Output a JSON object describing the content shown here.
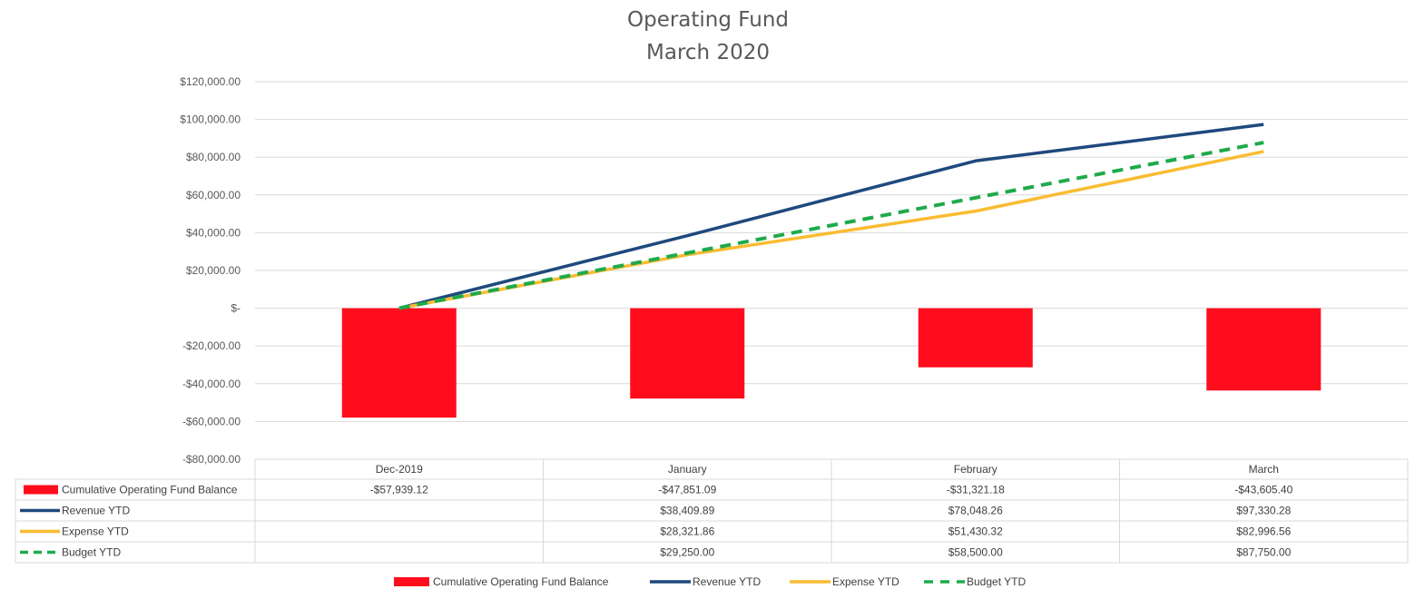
{
  "chart_data": {
    "type": "bar",
    "title": "Operating Fund",
    "subtitle": "March 2020",
    "categories": [
      "Dec-2019",
      "January",
      "February",
      "March"
    ],
    "ylim": [
      -80000,
      120000
    ],
    "ytick_values": [
      120000,
      100000,
      80000,
      60000,
      40000,
      20000,
      0,
      -20000,
      -40000,
      -60000,
      -80000
    ],
    "ytick_labels": [
      "$120,000.00",
      "$100,000.00",
      "$80,000.00",
      "$60,000.00",
      "$40,000.00",
      "$20,000.00",
      "$-",
      "-$20,000.00",
      "-$40,000.00",
      "-$60,000.00",
      "-$80,000.00"
    ],
    "grid": true,
    "legend_position": "bottom",
    "series": [
      {
        "name": "Cumulative Operating Fund Balance",
        "kind": "bar",
        "color": "#ff0d1d",
        "values": [
          -57939.12,
          -47851.09,
          -31321.18,
          -43605.4
        ],
        "labels": [
          "-$57,939.12",
          "-$47,851.09",
          "-$31,321.18",
          "-$43,605.40"
        ]
      },
      {
        "name": "Revenue YTD",
        "kind": "line",
        "style": "solid",
        "color": "#1f497d",
        "values": [
          0,
          38409.89,
          78048.26,
          97330.28
        ],
        "labels": [
          "",
          "$38,409.89",
          "$78,048.26",
          "$97,330.28"
        ]
      },
      {
        "name": "Expense YTD",
        "kind": "line",
        "style": "solid",
        "color": "#f9bc31",
        "values": [
          0,
          28321.86,
          51430.32,
          82996.56
        ],
        "labels": [
          "",
          "$28,321.86",
          "$51,430.32",
          "$82,996.56"
        ]
      },
      {
        "name": "Budget YTD",
        "kind": "line",
        "style": "dashed",
        "color": "#1faa4b",
        "values": [
          0,
          29250.0,
          58500.0,
          87750.0
        ],
        "labels": [
          "",
          "$29,250.00",
          "$58,500.00",
          "$87,750.00"
        ]
      }
    ]
  }
}
